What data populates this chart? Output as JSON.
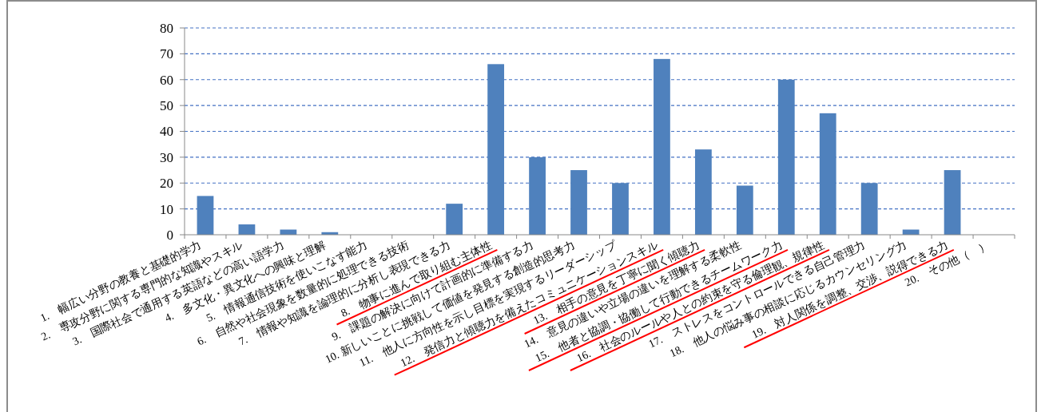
{
  "chart_data": {
    "type": "bar",
    "categories": [
      "1.　幅広い分野の教養と基礎的学力",
      "2.　専攻分野に関する専門的な知識やスキル",
      "3.　国際社会で通用する英語などの高い語学力",
      "4.　多文化・異文化への興味と理解",
      "5.　情報通信技術を使いこなす能力",
      "6.　自然や社会現象を数量的に処理できる技術",
      "7.　情報や知識を論理的に分析し表現できる力",
      "8.　物事に進んで取り組む主体性",
      "9.　課題の解決に向けて計画的に準備する力",
      "10. 新しいことに挑戦して価値を発見する創造的思考力",
      "11.　他人に方向性を示し目標を実現するリーダーシップ",
      "12.　発信力と傾聴力を備えたコミュニケーションスキル",
      "13.　相手の意見を丁寧に聞く傾聴力",
      "14.　意見の違いや立場の違いを理解する柔軟性",
      "15.　他者と協調・協働して行動できるチームワーク力",
      "16.　社会のルールや人との約束を守る倫理観、規律性",
      "17.　ストレスをコントロールできる自己管理力",
      "18.　他人の悩み事の相談に応じるカウンセリング力",
      "19.　対人関係を調整、交渉、説得できる力",
      "20.　その他（　）"
    ],
    "values": [
      15,
      4,
      2,
      1,
      0,
      0,
      12,
      66,
      30,
      25,
      20,
      68,
      33,
      19,
      60,
      47,
      20,
      2,
      25,
      0
    ],
    "color": "#4f81bd",
    "ylim": [
      0,
      80
    ],
    "yticks": [
      0,
      10,
      20,
      30,
      40,
      50,
      60,
      70,
      80
    ],
    "grid": "y"
  }
}
